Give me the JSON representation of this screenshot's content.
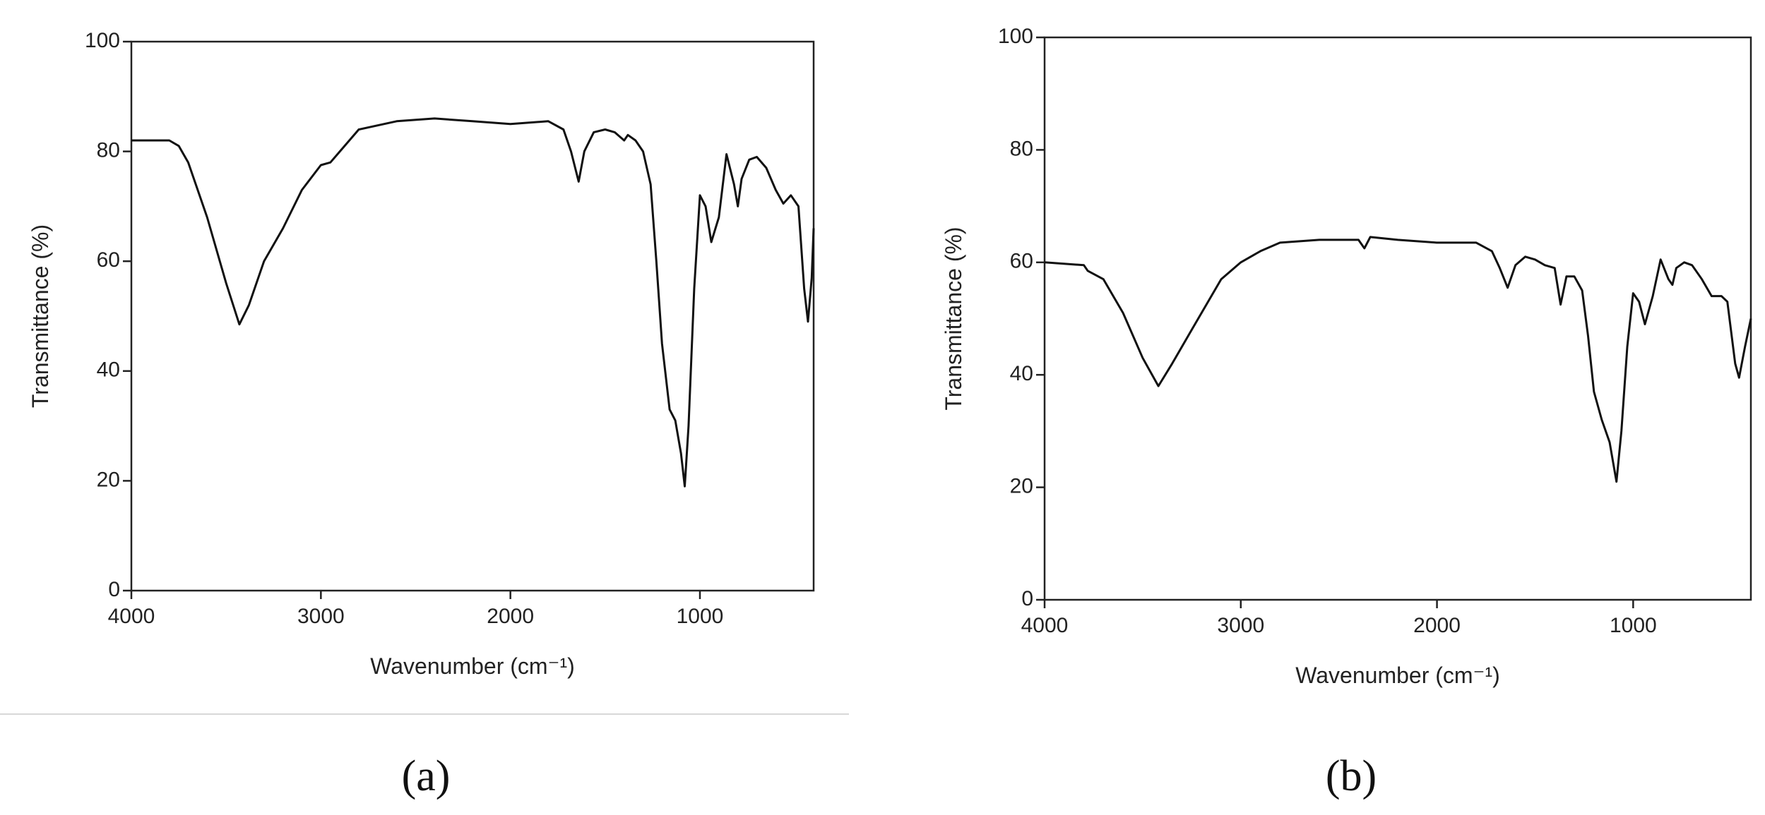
{
  "chart_data": [
    {
      "type": "line",
      "panel_label": "(a)",
      "xlabel": "Wavenumber (cm⁻¹)",
      "ylabel": "Transmittance (%)",
      "xlim": [
        4000,
        400
      ],
      "xticks": [
        4000,
        3000,
        2000,
        1000
      ],
      "ylim": [
        0,
        100
      ],
      "yticks": [
        0,
        20,
        40,
        60,
        80,
        100
      ],
      "color": "#111111",
      "x": [
        4000,
        3800,
        3750,
        3700,
        3600,
        3500,
        3430,
        3380,
        3300,
        3200,
        3100,
        3000,
        2950,
        2900,
        2800,
        2600,
        2400,
        2200,
        2000,
        1800,
        1720,
        1680,
        1640,
        1610,
        1560,
        1500,
        1450,
        1400,
        1380,
        1340,
        1300,
        1260,
        1230,
        1200,
        1160,
        1130,
        1100,
        1080,
        1060,
        1030,
        1000,
        970,
        940,
        900,
        860,
        820,
        800,
        780,
        740,
        700,
        650,
        600,
        560,
        520,
        480,
        450,
        430,
        410,
        400
      ],
      "values": [
        82,
        82,
        81,
        78,
        68,
        56,
        48.5,
        52,
        60,
        66,
        73,
        77.5,
        78,
        80,
        84,
        85.5,
        86,
        85.5,
        85,
        85.5,
        84,
        80,
        74.5,
        80,
        83.5,
        84,
        83.5,
        82,
        83,
        82,
        80,
        74,
        60,
        45,
        33,
        31,
        25,
        19,
        30,
        55,
        72,
        70,
        63.5,
        68,
        79.5,
        74,
        70,
        75,
        78.5,
        79,
        77,
        73,
        70.5,
        72,
        70,
        55,
        49,
        57,
        66
      ]
    },
    {
      "type": "line",
      "panel_label": "(b)",
      "xlabel": "Wavenumber (cm⁻¹)",
      "ylabel": "Transmittance (%)",
      "xlim": [
        4000,
        400
      ],
      "xticks": [
        4000,
        3000,
        2000,
        1000
      ],
      "ylim": [
        0,
        100
      ],
      "yticks": [
        0,
        20,
        40,
        60,
        80,
        100
      ],
      "color": "#111111",
      "x": [
        4000,
        3800,
        3780,
        3700,
        3600,
        3500,
        3420,
        3350,
        3250,
        3100,
        3000,
        2900,
        2800,
        2600,
        2400,
        2370,
        2340,
        2200,
        2000,
        1800,
        1720,
        1680,
        1640,
        1600,
        1550,
        1500,
        1450,
        1400,
        1370,
        1340,
        1300,
        1260,
        1230,
        1200,
        1160,
        1120,
        1085,
        1060,
        1030,
        1000,
        970,
        940,
        900,
        860,
        820,
        800,
        780,
        740,
        700,
        650,
        600,
        550,
        520,
        480,
        460,
        430,
        400
      ],
      "values": [
        60,
        59.5,
        58.5,
        57,
        51,
        43,
        38,
        42,
        48,
        57,
        60,
        62,
        63.5,
        64,
        64,
        62.5,
        64.5,
        64,
        63.5,
        63.5,
        62,
        59,
        55.5,
        59.5,
        61,
        60.5,
        59.5,
        59,
        52.5,
        57.5,
        57.5,
        55,
        47,
        37,
        32,
        28,
        21,
        30,
        45,
        54.5,
        53,
        49,
        54,
        60.5,
        57,
        56,
        59,
        60,
        59.5,
        57,
        54,
        54,
        53,
        42,
        39.5,
        45,
        50
      ]
    }
  ]
}
